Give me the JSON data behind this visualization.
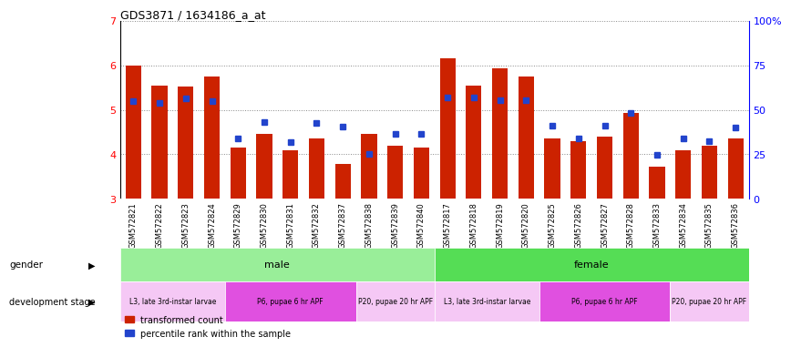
{
  "title": "GDS3871 / 1634186_a_at",
  "samples": [
    "GSM572821",
    "GSM572822",
    "GSM572823",
    "GSM572824",
    "GSM572829",
    "GSM572830",
    "GSM572831",
    "GSM572832",
    "GSM572837",
    "GSM572838",
    "GSM572839",
    "GSM572840",
    "GSM572817",
    "GSM572818",
    "GSM572819",
    "GSM572820",
    "GSM572825",
    "GSM572826",
    "GSM572827",
    "GSM572828",
    "GSM572833",
    "GSM572834",
    "GSM572835",
    "GSM572836"
  ],
  "bar_values": [
    6.0,
    5.55,
    5.52,
    5.75,
    4.15,
    4.45,
    4.1,
    4.35,
    3.78,
    4.45,
    4.2,
    4.15,
    6.15,
    5.55,
    5.92,
    5.75,
    4.35,
    4.3,
    4.4,
    4.93,
    3.72,
    4.1,
    4.2,
    4.35
  ],
  "percentile_values": [
    5.2,
    5.15,
    5.25,
    5.2,
    4.35,
    4.72,
    4.27,
    4.7,
    4.62,
    4.0,
    4.45,
    4.45,
    5.28,
    5.27,
    5.22,
    5.22,
    4.65,
    4.35,
    4.65,
    4.92,
    3.98,
    4.35,
    4.3,
    4.6
  ],
  "bar_color": "#cc2200",
  "percentile_color": "#2244cc",
  "ylim_left": [
    3,
    7
  ],
  "yticks_left": [
    3,
    4,
    5,
    6,
    7
  ],
  "ylim_right": [
    0,
    100
  ],
  "yticks_right": [
    0,
    25,
    50,
    75,
    100
  ],
  "ylabel_right_labels": [
    "0",
    "25",
    "50",
    "75",
    "100%"
  ],
  "gender_groups": [
    {
      "label": "male",
      "start": 0,
      "end": 11,
      "color": "#99ee99"
    },
    {
      "label": "female",
      "start": 12,
      "end": 23,
      "color": "#55dd55"
    }
  ],
  "dev_stage_groups": [
    {
      "label": "L3, late 3rd-instar larvae",
      "start": 0,
      "end": 3,
      "color": "#f8c0f8"
    },
    {
      "label": "P6, pupae 6 hr APF",
      "start": 4,
      "end": 8,
      "color": "#ee44ee"
    },
    {
      "label": "P20, pupae 20 hr APF",
      "start": 9,
      "end": 11,
      "color": "#f8c0f8"
    },
    {
      "label": "L3, late 3rd-instar larvae",
      "start": 12,
      "end": 15,
      "color": "#f8c0f8"
    },
    {
      "label": "P6, pupae 6 hr APF",
      "start": 16,
      "end": 20,
      "color": "#ee44ee"
    },
    {
      "label": "P20, pupae 20 hr APF",
      "start": 21,
      "end": 23,
      "color": "#f8c0f8"
    }
  ],
  "background_color": "#ffffff",
  "plot_bg_color": "#ffffff",
  "tick_bg_color": "#dddddd",
  "grid_color": "#888888",
  "legend_items": [
    {
      "label": "transformed count",
      "color": "#cc2200"
    },
    {
      "label": "percentile rank within the sample",
      "color": "#2244cc"
    }
  ]
}
